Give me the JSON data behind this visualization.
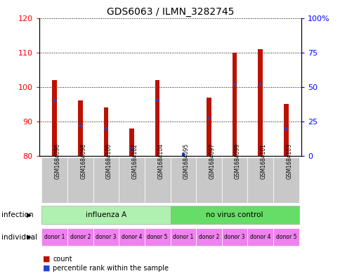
{
  "title": "GDS6063 / ILMN_3282745",
  "samples": [
    "GSM1684096",
    "GSM1684098",
    "GSM1684100",
    "GSM1684102",
    "GSM1684104",
    "GSM1684095",
    "GSM1684097",
    "GSM1684099",
    "GSM1684101",
    "GSM1684103"
  ],
  "count_values": [
    102,
    96,
    94,
    88,
    102,
    80,
    97,
    110,
    111,
    95
  ],
  "percentile_values": [
    40,
    22,
    20,
    5,
    40,
    1,
    27,
    52,
    52,
    20
  ],
  "ylim_left": [
    80,
    120
  ],
  "ylim_right": [
    0,
    100
  ],
  "yticks_left": [
    80,
    90,
    100,
    110,
    120
  ],
  "yticks_right": [
    0,
    25,
    50,
    75,
    100
  ],
  "infection_groups": [
    {
      "label": "influenza A",
      "start": 0,
      "end": 5,
      "color": "#b0f0b0"
    },
    {
      "label": "no virus control",
      "start": 5,
      "end": 10,
      "color": "#66dd66"
    }
  ],
  "individual_labels": [
    "donor 1",
    "donor 2",
    "donor 3",
    "donor 4",
    "donor 5",
    "donor 1",
    "donor 2",
    "donor 3",
    "donor 4",
    "donor 5"
  ],
  "individual_color": "#ee82ee",
  "bar_color": "#bb1100",
  "percentile_color": "#2244cc",
  "sample_bg_color": "#c8c8c8",
  "legend_count_color": "#bb1100",
  "legend_pct_color": "#2244cc",
  "bar_width": 0.18
}
